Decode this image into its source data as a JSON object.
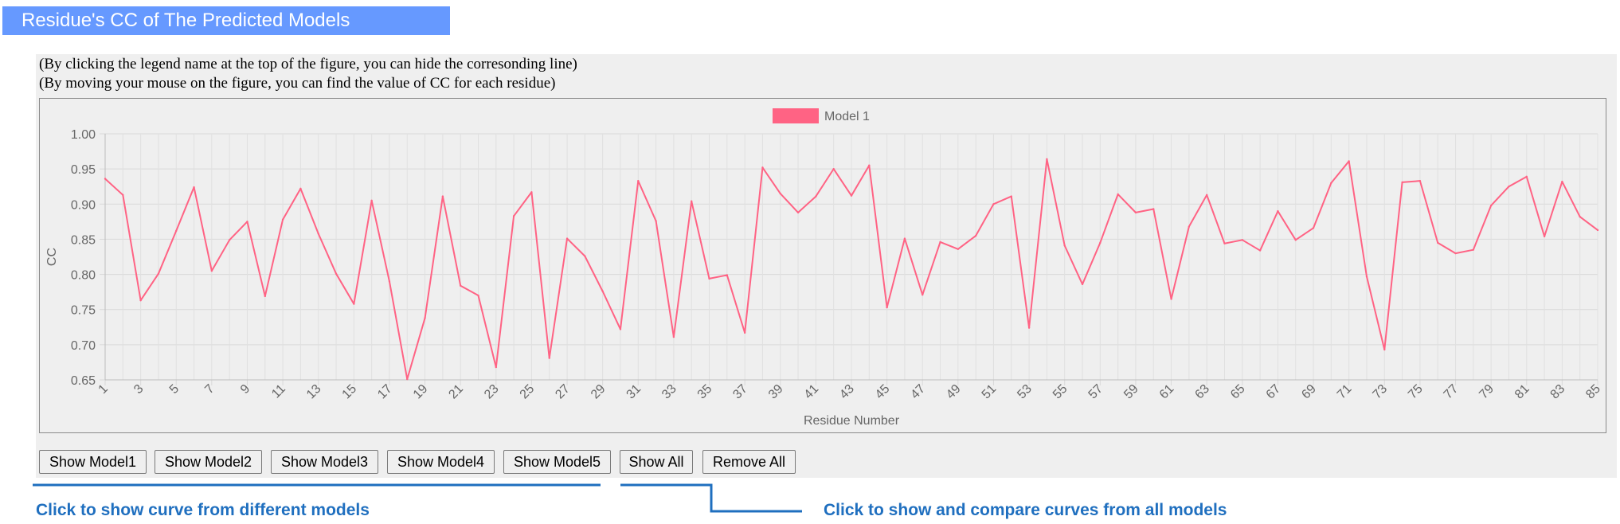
{
  "header": {
    "title": "Residue's CC of The Predicted Models"
  },
  "notes": {
    "line1": "(By clicking the legend name at the top of the figure, you can hide the corresonding line)",
    "line2": "(By moving your mouse on the figure, you can find the value of CC for each residue)"
  },
  "buttons": {
    "show_model1": "Show Model1",
    "show_model2": "Show Model2",
    "show_model3": "Show Model3",
    "show_model4": "Show Model4",
    "show_model5": "Show Model5",
    "show_all": "Show All",
    "remove_all": "Remove All"
  },
  "annotations": {
    "left": "Click to show curve from different models",
    "right": "Click to show and compare curves from all models",
    "color": "#1f6fbf"
  },
  "chart_data": {
    "type": "line",
    "xlabel": "Residue Number",
    "ylabel": "CC",
    "ylim": [
      0.65,
      1.0
    ],
    "yticks": [
      "0.65",
      "0.70",
      "0.75",
      "0.80",
      "0.85",
      "0.90",
      "0.95",
      "1.00"
    ],
    "grid": true,
    "legend_position": "top-center",
    "x": [
      1,
      2,
      3,
      4,
      5,
      6,
      7,
      8,
      9,
      10,
      11,
      12,
      13,
      14,
      15,
      16,
      17,
      18,
      19,
      20,
      21,
      22,
      23,
      24,
      25,
      26,
      27,
      28,
      29,
      30,
      31,
      32,
      33,
      34,
      35,
      36,
      37,
      38,
      39,
      40,
      41,
      42,
      43,
      44,
      45,
      46,
      47,
      48,
      49,
      50,
      51,
      52,
      53,
      54,
      55,
      56,
      57,
      58,
      59,
      60,
      61,
      62,
      63,
      64,
      65,
      66,
      67,
      68,
      69,
      70,
      71,
      72,
      73,
      74,
      75,
      76,
      77,
      78,
      79,
      80,
      81,
      82,
      83,
      84,
      85
    ],
    "series": [
      {
        "name": "Model 1",
        "color": "#ff6384",
        "values": [
          0.936,
          0.913,
          0.763,
          0.801,
          0.862,
          0.924,
          0.805,
          0.849,
          0.875,
          0.769,
          0.878,
          0.922,
          0.858,
          0.801,
          0.758,
          0.905,
          0.79,
          0.651,
          0.738,
          0.911,
          0.784,
          0.77,
          0.668,
          0.883,
          0.917,
          0.681,
          0.851,
          0.826,
          0.776,
          0.722,
          0.933,
          0.876,
          0.711,
          0.904,
          0.794,
          0.799,
          0.717,
          0.952,
          0.915,
          0.888,
          0.911,
          0.95,
          0.912,
          0.955,
          0.753,
          0.851,
          0.771,
          0.846,
          0.836,
          0.855,
          0.9,
          0.911,
          0.724,
          0.964,
          0.841,
          0.786,
          0.845,
          0.914,
          0.888,
          0.893,
          0.765,
          0.868,
          0.913,
          0.844,
          0.849,
          0.834,
          0.89,
          0.849,
          0.866,
          0.93,
          0.961,
          0.797,
          0.693,
          0.931,
          0.933,
          0.845,
          0.83,
          0.835,
          0.898,
          0.925,
          0.939,
          0.854,
          0.932,
          0.882,
          0.863
        ]
      }
    ]
  }
}
